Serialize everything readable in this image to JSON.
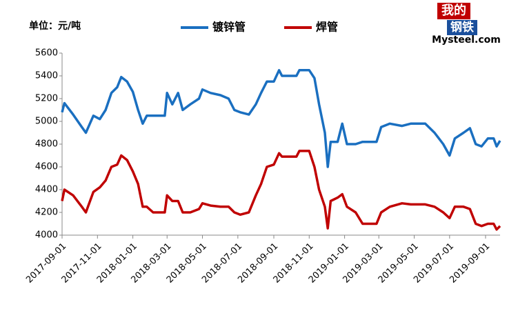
{
  "chart_data": {
    "type": "line",
    "unit_label": "单位：元/吨",
    "logo": {
      "top": "我的",
      "middle": "钢铁",
      "bottom": "Mysteel.com"
    },
    "x": [
      "2017-09-01",
      "2017-09-05",
      "2017-09-20",
      "2017-10-05",
      "2017-10-12",
      "2017-10-25",
      "2017-11-05",
      "2017-11-15",
      "2017-11-25",
      "2017-12-05",
      "2017-12-12",
      "2017-12-22",
      "2018-01-01",
      "2018-01-10",
      "2018-01-18",
      "2018-01-25",
      "2018-02-05",
      "2018-02-25",
      "2018-03-01",
      "2018-03-10",
      "2018-03-20",
      "2018-03-28",
      "2018-04-10",
      "2018-04-25",
      "2018-05-01",
      "2018-05-15",
      "2018-06-01",
      "2018-06-15",
      "2018-06-25",
      "2018-07-05",
      "2018-07-20",
      "2018-08-01",
      "2018-08-10",
      "2018-08-20",
      "2018-09-01",
      "2018-09-10",
      "2018-09-15",
      "2018-10-10",
      "2018-10-15",
      "2018-11-01",
      "2018-11-10",
      "2018-11-18",
      "2018-11-28",
      "2018-12-03",
      "2018-12-08",
      "2018-12-20",
      "2018-12-28",
      "2019-01-05",
      "2019-01-20",
      "2019-02-01",
      "2019-02-25",
      "2019-03-05",
      "2019-03-20",
      "2019-04-10",
      "2019-04-25",
      "2019-05-20",
      "2019-06-05",
      "2019-06-20",
      "2019-07-01",
      "2019-07-10",
      "2019-07-25",
      "2019-08-05",
      "2019-08-15",
      "2019-08-25",
      "2019-09-05",
      "2019-09-15",
      "2019-09-20",
      "2019-09-26"
    ],
    "series": [
      {
        "name": "镀锌管",
        "color": "#1a6fc0",
        "values": [
          5080,
          5160,
          5060,
          4950,
          4900,
          5050,
          5020,
          5100,
          5250,
          5300,
          5390,
          5350,
          5260,
          5100,
          4980,
          5050,
          5050,
          5050,
          5250,
          5150,
          5250,
          5100,
          5150,
          5200,
          5280,
          5250,
          5230,
          5200,
          5100,
          5080,
          5060,
          5150,
          5250,
          5350,
          5350,
          5450,
          5400,
          5400,
          5450,
          5450,
          5380,
          5150,
          4900,
          4600,
          4820,
          4820,
          4980,
          4800,
          4800,
          4820,
          4820,
          4950,
          4980,
          4960,
          4980,
          4980,
          4900,
          4800,
          4700,
          4850,
          4900,
          4940,
          4800,
          4780,
          4850,
          4850,
          4780,
          4830
        ]
      },
      {
        "name": "焊管",
        "color": "#c00000",
        "values": [
          4300,
          4400,
          4350,
          4250,
          4200,
          4380,
          4420,
          4480,
          4600,
          4620,
          4700,
          4660,
          4560,
          4450,
          4250,
          4250,
          4200,
          4200,
          4350,
          4300,
          4300,
          4200,
          4200,
          4230,
          4280,
          4260,
          4250,
          4250,
          4200,
          4180,
          4200,
          4350,
          4450,
          4600,
          4620,
          4720,
          4690,
          4690,
          4740,
          4740,
          4600,
          4400,
          4250,
          4060,
          4300,
          4330,
          4360,
          4250,
          4200,
          4100,
          4100,
          4200,
          4250,
          4280,
          4270,
          4270,
          4250,
          4200,
          4150,
          4250,
          4250,
          4230,
          4100,
          4080,
          4100,
          4100,
          4050,
          4080
        ]
      }
    ],
    "xlim": [
      "2017-09-01",
      "2019-09-26"
    ],
    "xticks": [
      "2017-09-01",
      "2017-11-01",
      "2018-01-01",
      "2018-03-01",
      "2018-05-01",
      "2018-07-01",
      "2018-09-01",
      "2018-11-01",
      "2019-01-01",
      "2019-03-01",
      "2019-05-01",
      "2019-07-01",
      "2019-09-01"
    ],
    "ylim": [
      4000,
      5600
    ],
    "yticks": [
      4000,
      4200,
      4400,
      4600,
      4800,
      5000,
      5200,
      5400,
      5600
    ],
    "grid": false,
    "legend": "top"
  }
}
